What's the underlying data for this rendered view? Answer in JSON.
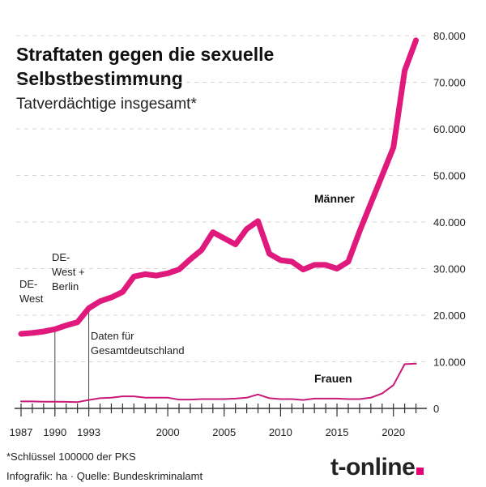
{
  "chart_data": {
    "type": "line",
    "title": "Straftaten gegen die sexuelle Selbstbestimmung",
    "subtitle": "Tatverdächtige insgesamt*",
    "x": [
      1987,
      1988,
      1989,
      1990,
      1991,
      1992,
      1993,
      1994,
      1995,
      1996,
      1997,
      1998,
      1999,
      2000,
      2001,
      2002,
      2003,
      2004,
      2005,
      2006,
      2007,
      2008,
      2009,
      2010,
      2011,
      2012,
      2013,
      2014,
      2015,
      2016,
      2017,
      2018,
      2019,
      2020,
      2021,
      2022
    ],
    "series": [
      {
        "name": "Männer",
        "color": "#e0197d",
        "values": [
          16000,
          16200,
          16500,
          17000,
          17800,
          18500,
          21500,
          23000,
          23800,
          25000,
          28300,
          28800,
          28500,
          29000,
          29800,
          32000,
          34000,
          37800,
          36500,
          35200,
          38500,
          40200,
          33200,
          31800,
          31500,
          29800,
          30800,
          30800,
          30000,
          31500,
          38000,
          44000,
          50000,
          56000,
          72500,
          79000
        ]
      },
      {
        "name": "Frauen",
        "color": "#c81a78",
        "values": [
          1500,
          1500,
          1450,
          1450,
          1400,
          1350,
          1800,
          2200,
          2300,
          2600,
          2600,
          2300,
          2300,
          2300,
          1900,
          1900,
          2000,
          2000,
          2000,
          2100,
          2300,
          3000,
          2200,
          2000,
          2000,
          1800,
          2100,
          2100,
          2100,
          2000,
          2000,
          2300,
          3200,
          5000,
          9500,
          9600
        ]
      }
    ],
    "yticks": [
      "0",
      "10.000",
      "20.000",
      "30.000",
      "40.000",
      "50.000",
      "60.000",
      "70.000",
      "80.000"
    ],
    "ytick_values": [
      0,
      10000,
      20000,
      30000,
      40000,
      50000,
      60000,
      70000,
      80000
    ],
    "xticks": [
      "1987",
      "1990",
      "1993",
      "2000",
      "2005",
      "2010",
      "2015",
      "2020"
    ],
    "xtick_values": [
      1987,
      1990,
      1993,
      2000,
      2005,
      2010,
      2015,
      2020
    ],
    "ylim": [
      0,
      80000
    ],
    "xlim": [
      1987,
      2022
    ],
    "grid": "horizontal dashed",
    "annotations": [
      {
        "text": [
          "DE-",
          "West"
        ],
        "x": 1987
      },
      {
        "text": [
          "DE-",
          "West +",
          "Berlin"
        ],
        "x": 1990
      },
      {
        "text": [
          "Daten für",
          "Gesamtdeutschland"
        ],
        "x": 1993
      }
    ]
  },
  "footnote": "*Schlüssel 100000 der PKS",
  "credit": "Infografik: ha  ·  Quelle: Bundeskriminalamt",
  "logo": "t-online",
  "accent": "#e20074"
}
